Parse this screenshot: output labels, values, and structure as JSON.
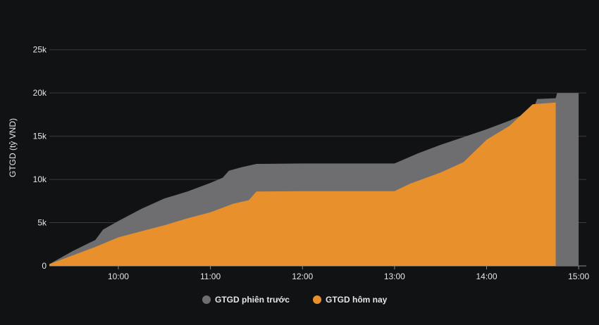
{
  "chart_data": {
    "type": "area",
    "title": "",
    "xlabel": "",
    "ylabel": "GTGD (tỷ VND)",
    "y_ticks": [
      {
        "value": 0,
        "label": "0"
      },
      {
        "value": 5000,
        "label": "5k"
      },
      {
        "value": 10000,
        "label": "10k"
      },
      {
        "value": 15000,
        "label": "15k"
      },
      {
        "value": 20000,
        "label": "20k"
      },
      {
        "value": 25000,
        "label": "25k"
      }
    ],
    "x_ticks": [
      {
        "value": "10:00",
        "label": "10:00"
      },
      {
        "value": "11:00",
        "label": "11:00"
      },
      {
        "value": "12:00",
        "label": "12:00"
      },
      {
        "value": "13:00",
        "label": "13:00"
      },
      {
        "value": "14:00",
        "label": "14:00"
      },
      {
        "value": "15:00",
        "label": "15:00"
      }
    ],
    "xlim": [
      "09:15",
      "15:05"
    ],
    "ylim": [
      0,
      27500
    ],
    "grid": true,
    "legend_position": "bottom",
    "series": [
      {
        "name": "GTGD phiên trước",
        "color": "#6e6e70",
        "points": [
          [
            "09:15",
            200
          ],
          [
            "09:30",
            1700
          ],
          [
            "09:45",
            3000
          ],
          [
            "09:50",
            4200
          ],
          [
            "10:00",
            5200
          ],
          [
            "10:15",
            6600
          ],
          [
            "10:30",
            7800
          ],
          [
            "10:45",
            8600
          ],
          [
            "11:00",
            9600
          ],
          [
            "11:08",
            10200
          ],
          [
            "11:12",
            11000
          ],
          [
            "11:20",
            11400
          ],
          [
            "11:30",
            11800
          ],
          [
            "12:00",
            11850
          ],
          [
            "12:30",
            11850
          ],
          [
            "13:00",
            11850
          ],
          [
            "13:15",
            13000
          ],
          [
            "13:30",
            14000
          ],
          [
            "14:00",
            15800
          ],
          [
            "14:15",
            16800
          ],
          [
            "14:30",
            18000
          ],
          [
            "14:33",
            19300
          ],
          [
            "14:45",
            19400
          ],
          [
            "14:46",
            20000
          ],
          [
            "15:00",
            20000
          ]
        ]
      },
      {
        "name": "GTGD hôm nay",
        "color": "#e8902c",
        "points": [
          [
            "09:15",
            200
          ],
          [
            "09:30",
            1200
          ],
          [
            "09:45",
            2200
          ],
          [
            "10:00",
            3300
          ],
          [
            "10:15",
            4000
          ],
          [
            "10:30",
            4700
          ],
          [
            "10:45",
            5500
          ],
          [
            "11:00",
            6200
          ],
          [
            "11:15",
            7200
          ],
          [
            "11:25",
            7600
          ],
          [
            "11:30",
            8600
          ],
          [
            "12:00",
            8650
          ],
          [
            "12:30",
            8650
          ],
          [
            "13:00",
            8650
          ],
          [
            "13:10",
            9500
          ],
          [
            "13:30",
            10800
          ],
          [
            "13:45",
            12000
          ],
          [
            "14:00",
            14600
          ],
          [
            "14:15",
            16200
          ],
          [
            "14:30",
            18700
          ],
          [
            "14:45",
            18900
          ]
        ]
      }
    ]
  }
}
